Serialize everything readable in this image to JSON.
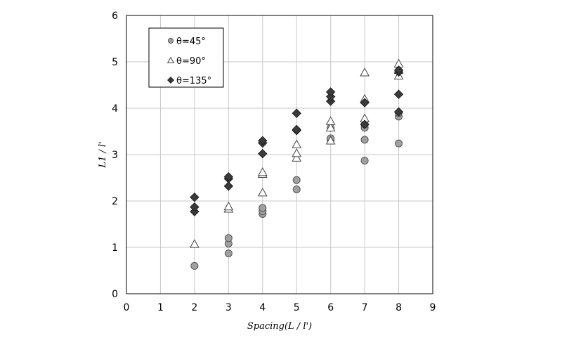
{
  "chart_data": {
    "type": "scatter",
    "xlabel": "Spacing(L / l')",
    "ylabel": "L1 / l'",
    "xlim": [
      0,
      9
    ],
    "ylim": [
      0,
      6
    ],
    "xticks": [
      0,
      1,
      2,
      3,
      4,
      5,
      6,
      7,
      8,
      9
    ],
    "yticks": [
      0,
      1,
      2,
      3,
      4,
      5,
      6
    ],
    "grid": true,
    "legend_position": "top-left",
    "series": [
      {
        "name": "θ=45°",
        "marker": "circle",
        "color": "#a0a0a0",
        "points": [
          [
            2,
            0.6
          ],
          [
            3,
            0.87
          ],
          [
            3,
            1.08
          ],
          [
            3,
            1.2
          ],
          [
            4,
            1.72
          ],
          [
            4,
            1.78
          ],
          [
            4,
            1.85
          ],
          [
            5,
            2.25
          ],
          [
            5,
            2.45
          ],
          [
            6,
            3.32
          ],
          [
            6,
            3.35
          ],
          [
            6,
            3.58
          ],
          [
            7,
            2.87
          ],
          [
            7,
            3.32
          ],
          [
            7,
            3.58
          ],
          [
            7,
            3.65
          ],
          [
            8,
            3.24
          ],
          [
            8,
            3.82
          ],
          [
            8,
            3.9
          ]
        ]
      },
      {
        "name": "θ=90°",
        "marker": "triangle",
        "color": "#ffffff",
        "points": [
          [
            2,
            1.07
          ],
          [
            3,
            1.83
          ],
          [
            3,
            1.88
          ],
          [
            4,
            2.18
          ],
          [
            4,
            2.58
          ],
          [
            4,
            2.62
          ],
          [
            5,
            2.93
          ],
          [
            5,
            3.03
          ],
          [
            5,
            3.22
          ],
          [
            6,
            3.3
          ],
          [
            6,
            3.58
          ],
          [
            6,
            3.72
          ],
          [
            7,
            3.78
          ],
          [
            7,
            4.2
          ],
          [
            7,
            4.77
          ],
          [
            8,
            4.7
          ],
          [
            8,
            4.82
          ],
          [
            8,
            4.96
          ]
        ]
      },
      {
        "name": "θ=135°",
        "marker": "diamond",
        "color": "#3a3a3a",
        "points": [
          [
            2,
            1.77
          ],
          [
            2,
            1.87
          ],
          [
            2,
            2.08
          ],
          [
            3,
            2.32
          ],
          [
            3,
            2.48
          ],
          [
            3,
            2.52
          ],
          [
            4,
            3.02
          ],
          [
            4,
            3.25
          ],
          [
            4,
            3.3
          ],
          [
            5,
            3.52
          ],
          [
            5,
            3.54
          ],
          [
            5,
            3.89
          ],
          [
            6,
            4.15
          ],
          [
            6,
            4.25
          ],
          [
            6,
            4.35
          ],
          [
            7,
            3.65
          ],
          [
            7,
            4.12
          ],
          [
            8,
            3.92
          ],
          [
            8,
            4.3
          ],
          [
            8,
            4.78
          ],
          [
            8,
            4.82
          ]
        ]
      }
    ]
  }
}
